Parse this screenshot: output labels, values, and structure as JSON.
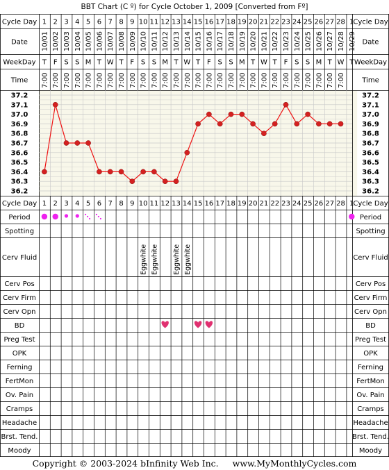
{
  "title": "BBT Chart (C º) for Cycle October 1, 2009  [Converted from Fº]",
  "footer": {
    "copyright": "Copyright © 2003-2024 bInfinity Web Inc.",
    "site": "www.MyMonthlyCycles.com"
  },
  "colors": {
    "line": "#ee1111",
    "point": "#d42020",
    "period": "#ee22ee",
    "heart": "#e03070",
    "temp_bg": "#f8f7ea",
    "grid": "#c8c8c8"
  },
  "row_labels": {
    "cycle_day": "Cycle Day",
    "date": "Date",
    "weekday": "WeekDay",
    "time": "Time",
    "period": "Period",
    "spotting": "Spotting",
    "cerv_fluid": "Cerv Fluid",
    "cerv_pos": "Cerv Pos",
    "cerv_firm": "Cerv Firm",
    "cerv_opn": "Cerv Opn",
    "bd": "BD",
    "preg_test": "Preg Test",
    "opk": "OPK",
    "ferning": "Ferning",
    "fertmon": "FertMon",
    "ov_pain": "Ov. Pain",
    "cramps": "Cramps",
    "headache": "Headache",
    "brst_tend": "Brst. Tend.",
    "moody": "Moody"
  },
  "cycle_days": [
    "1",
    "2",
    "3",
    "4",
    "5",
    "6",
    "7",
    "8",
    "9",
    "10",
    "11",
    "12",
    "13",
    "14",
    "15",
    "16",
    "17",
    "18",
    "19",
    "20",
    "21",
    "22",
    "23",
    "24",
    "25",
    "26",
    "27",
    "28",
    "1"
  ],
  "dates": [
    "10/01",
    "10/02",
    "10/03",
    "10/04",
    "10/05",
    "10/06",
    "10/07",
    "10/08",
    "10/09",
    "10/10",
    "10/11",
    "10/12",
    "10/13",
    "10/14",
    "10/15",
    "10/16",
    "10/17",
    "10/18",
    "10/19",
    "10/20",
    "10/21",
    "10/22",
    "10/23",
    "10/24",
    "10/25",
    "10/26",
    "10/27",
    "10/28",
    "10/29"
  ],
  "weekdays": [
    "T",
    "F",
    "S",
    "S",
    "M",
    "T",
    "W",
    "T",
    "F",
    "S",
    "S",
    "M",
    "T",
    "W",
    "T",
    "F",
    "S",
    "S",
    "M",
    "T",
    "W",
    "T",
    "F",
    "S",
    "S",
    "M",
    "T",
    "W",
    "T"
  ],
  "times": [
    "7:00",
    "7:00",
    "7:00",
    "7:00",
    "7:00",
    "7:00",
    "7:00",
    "7:00",
    "7:00",
    "7:00",
    "7:00",
    "7:00",
    "7:00",
    "7:00",
    "7:00",
    "7:00",
    "7:00",
    "7:00",
    "7:00",
    "7:00",
    "7:00",
    "7:00",
    "7:00",
    "7:00",
    "7:00",
    "7:00",
    "7:00",
    "7:00",
    ""
  ],
  "chart_data": {
    "type": "line",
    "title": "BBT Chart (C º) for Cycle October 1, 2009  [Converted from Fº]",
    "xlabel": "Cycle Day",
    "ylabel": "",
    "ylim": [
      36.2,
      37.2
    ],
    "y_ticks": [
      "37.2",
      "37.1",
      "37.0",
      "36.9",
      "36.8",
      "36.7",
      "36.6",
      "36.5",
      "36.4",
      "36.3",
      "36.2"
    ],
    "x": [
      1,
      2,
      3,
      4,
      5,
      6,
      7,
      8,
      9,
      10,
      11,
      12,
      13,
      14,
      15,
      16,
      17,
      18,
      19,
      20,
      21,
      22,
      23,
      24,
      25,
      26,
      27,
      28
    ],
    "series": [
      {
        "values": [
          36.4,
          37.1,
          36.7,
          36.7,
          36.7,
          36.4,
          36.4,
          36.4,
          36.3,
          36.4,
          36.4,
          36.3,
          36.3,
          36.6,
          36.9,
          37.0,
          36.9,
          37.0,
          37.0,
          36.9,
          36.8,
          36.9,
          37.1,
          36.9,
          37.0,
          36.9,
          36.9,
          36.9
        ]
      }
    ],
    "grid": true
  },
  "period": [
    "heavy",
    "heavy",
    "medium",
    "medium",
    "spotting",
    "spotting",
    "",
    "",
    "",
    "",
    "",
    "",
    "",
    "",
    "",
    "",
    "",
    "",
    "",
    "",
    "",
    "",
    "",
    "",
    "",
    "",
    "",
    "",
    "heavy"
  ],
  "cerv_fluid": [
    "",
    "",
    "",
    "",
    "",
    "",
    "",
    "",
    "",
    "Eggwhite",
    "Eggwhite",
    "",
    "Eggwhite",
    "Eggwhite",
    "",
    "",
    "",
    "",
    "",
    "",
    "",
    "",
    "",
    "",
    "",
    "",
    "",
    "",
    ""
  ],
  "bd": [
    "",
    "",
    "",
    "",
    "",
    "",
    "",
    "",
    "",
    "",
    "",
    "heart",
    "",
    "",
    "heart",
    "heart",
    "",
    "",
    "",
    "",
    "",
    "",
    "",
    "",
    "",
    "",
    "",
    "",
    ""
  ]
}
